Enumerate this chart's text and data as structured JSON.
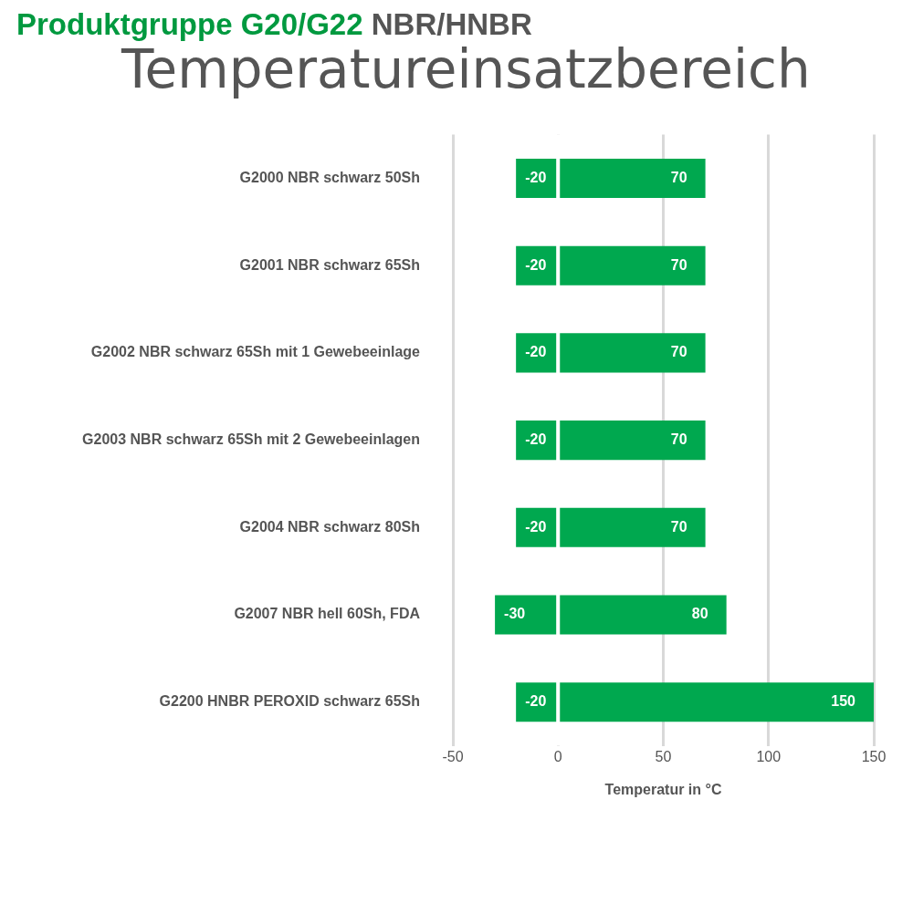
{
  "chart_data": {
    "type": "bar",
    "orientation": "horizontal",
    "stacked": true,
    "title": "Produktgruppe G20/G22 NBR/HNBR",
    "subtitle": "Temperatureinsatzbereich",
    "xlabel": "Temperatur in °C",
    "categories": [
      "G2000 NBR schwarz 50Sh",
      "G2001 NBR schwarz 65Sh",
      "G2002 NBR schwarz 65Sh mit 1 Gewebeeinlage",
      "G2003 NBR schwarz 65Sh mit 2 Gewebeeinlagen",
      "G2004 NBR schwarz 80Sh",
      "G2007 NBR hell 60Sh, FDA",
      "G2200 HNBR PEROXID schwarz 65Sh"
    ],
    "series": [
      {
        "color": "#00a84f",
        "values": [
          -20,
          -20,
          -20,
          -20,
          -20,
          -30,
          -20
        ]
      },
      {
        "color": "#00a84f",
        "values": [
          70,
          70,
          70,
          70,
          70,
          80,
          150
        ]
      }
    ],
    "xlim": [
      -50,
      150
    ],
    "xticks": [
      -50,
      0,
      50,
      100,
      150
    ],
    "grid": "x",
    "legend": false,
    "data_labels": true
  }
}
